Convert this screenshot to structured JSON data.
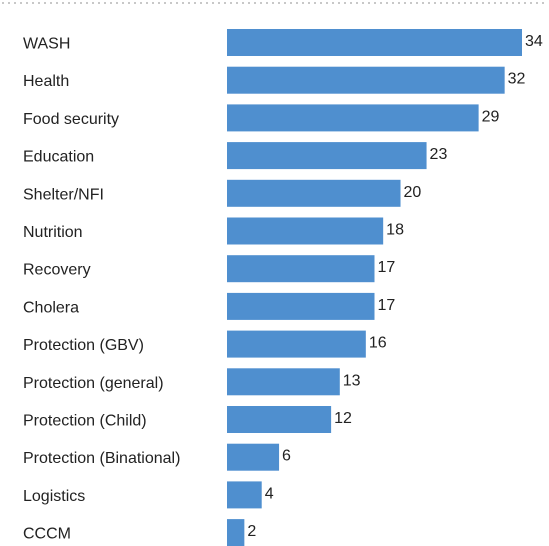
{
  "chart_data": {
    "type": "bar",
    "orientation": "horizontal",
    "categories": [
      "WASH",
      "Health",
      "Food security",
      "Education",
      "Shelter/NFI",
      "Nutrition",
      "Recovery",
      "Cholera",
      "Protection (GBV)",
      "Protection (general)",
      "Protection (Child)",
      "Protection (Binational)",
      "Logistics",
      "CCCM"
    ],
    "values": [
      34,
      32,
      29,
      23,
      20,
      18,
      17,
      17,
      16,
      13,
      12,
      6,
      4,
      2
    ],
    "title": "",
    "xlabel": "",
    "ylabel": "",
    "grid": false,
    "legend": false
  },
  "colors": {
    "bar": "#4f8fcf",
    "text": "#222222",
    "divider": "#c8c8c8"
  }
}
